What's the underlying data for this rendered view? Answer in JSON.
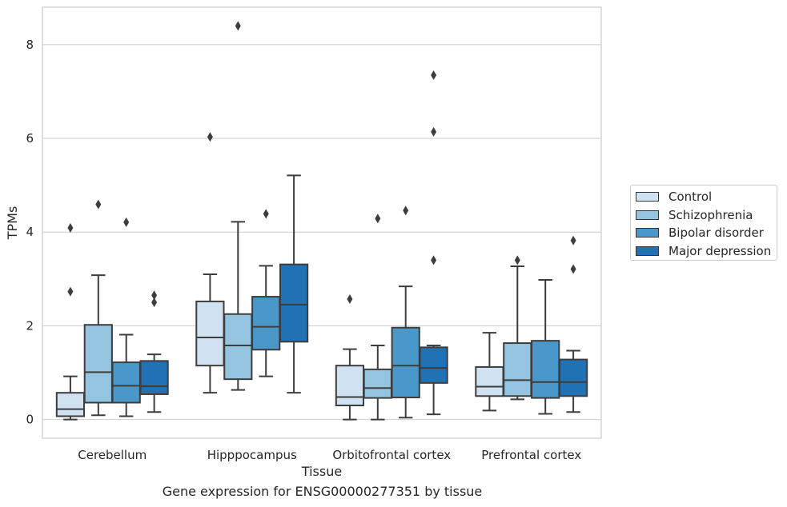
{
  "caption": "Gene expression for ENSG00000277351 by tissue",
  "chart_data": {
    "type": "box",
    "xlabel": "Tissue",
    "ylabel": "TPMs",
    "ylim": [
      -0.4,
      8.8
    ],
    "yticks": [
      0,
      2,
      4,
      6,
      8
    ],
    "grid": "horizontal",
    "legend_position": "right",
    "categories": [
      "Cerebellum",
      "Hipppocampus",
      "Orbitofrontal cortex",
      "Prefrontal cortex"
    ],
    "series": [
      {
        "name": "Control",
        "color": "#d0e1f2",
        "boxes": [
          {
            "whislo": 0.0,
            "q1": 0.07,
            "med": 0.22,
            "q3": 0.57,
            "whishi": 0.92,
            "fliers": [
              2.73,
              4.09
            ]
          },
          {
            "whislo": 0.57,
            "q1": 1.15,
            "med": 1.75,
            "q3": 2.52,
            "whishi": 3.1,
            "fliers": [
              6.03
            ]
          },
          {
            "whislo": 0.0,
            "q1": 0.3,
            "med": 0.48,
            "q3": 1.15,
            "whishi": 1.5,
            "fliers": [
              2.57
            ]
          },
          {
            "whislo": 0.19,
            "q1": 0.5,
            "med": 0.7,
            "q3": 1.12,
            "whishi": 1.85,
            "fliers": []
          }
        ]
      },
      {
        "name": "Schizophrenia",
        "color": "#94c4df",
        "boxes": [
          {
            "whislo": 0.09,
            "q1": 0.36,
            "med": 1.01,
            "q3": 2.02,
            "whishi": 3.08,
            "fliers": [
              4.59
            ]
          },
          {
            "whislo": 0.63,
            "q1": 0.86,
            "med": 1.58,
            "q3": 2.25,
            "whishi": 4.22,
            "fliers": [
              8.4
            ]
          },
          {
            "whislo": 0.0,
            "q1": 0.46,
            "med": 0.67,
            "q3": 1.07,
            "whishi": 1.58,
            "fliers": [
              4.29
            ]
          },
          {
            "whislo": 0.43,
            "q1": 0.5,
            "med": 0.84,
            "q3": 1.63,
            "whishi": 3.27,
            "fliers": [
              3.4
            ]
          }
        ]
      },
      {
        "name": "Bipolar disorder",
        "color": "#4a98c9",
        "boxes": [
          {
            "whislo": 0.07,
            "q1": 0.36,
            "med": 0.72,
            "q3": 1.22,
            "whishi": 1.81,
            "fliers": [
              4.21
            ]
          },
          {
            "whislo": 0.92,
            "q1": 1.49,
            "med": 1.98,
            "q3": 2.62,
            "whishi": 3.28,
            "fliers": [
              4.39
            ]
          },
          {
            "whislo": 0.04,
            "q1": 0.47,
            "med": 1.15,
            "q3": 1.96,
            "whishi": 2.84,
            "fliers": [
              4.46
            ]
          },
          {
            "whislo": 0.12,
            "q1": 0.46,
            "med": 0.8,
            "q3": 1.68,
            "whishi": 2.98,
            "fliers": []
          }
        ]
      },
      {
        "name": "Major depression",
        "color": "#2171b5",
        "boxes": [
          {
            "whislo": 0.16,
            "q1": 0.54,
            "med": 0.71,
            "q3": 1.25,
            "whishi": 1.39,
            "fliers": [
              2.5,
              2.65
            ]
          },
          {
            "whislo": 0.57,
            "q1": 1.66,
            "med": 2.45,
            "q3": 3.31,
            "whishi": 5.21,
            "fliers": []
          },
          {
            "whislo": 0.11,
            "q1": 0.78,
            "med": 1.1,
            "q3": 1.54,
            "whishi": 1.58,
            "fliers": [
              3.4,
              6.14,
              7.35
            ]
          },
          {
            "whislo": 0.16,
            "q1": 0.5,
            "med": 0.8,
            "q3": 1.28,
            "whishi": 1.47,
            "fliers": [
              3.21,
              3.82
            ]
          }
        ]
      }
    ]
  }
}
